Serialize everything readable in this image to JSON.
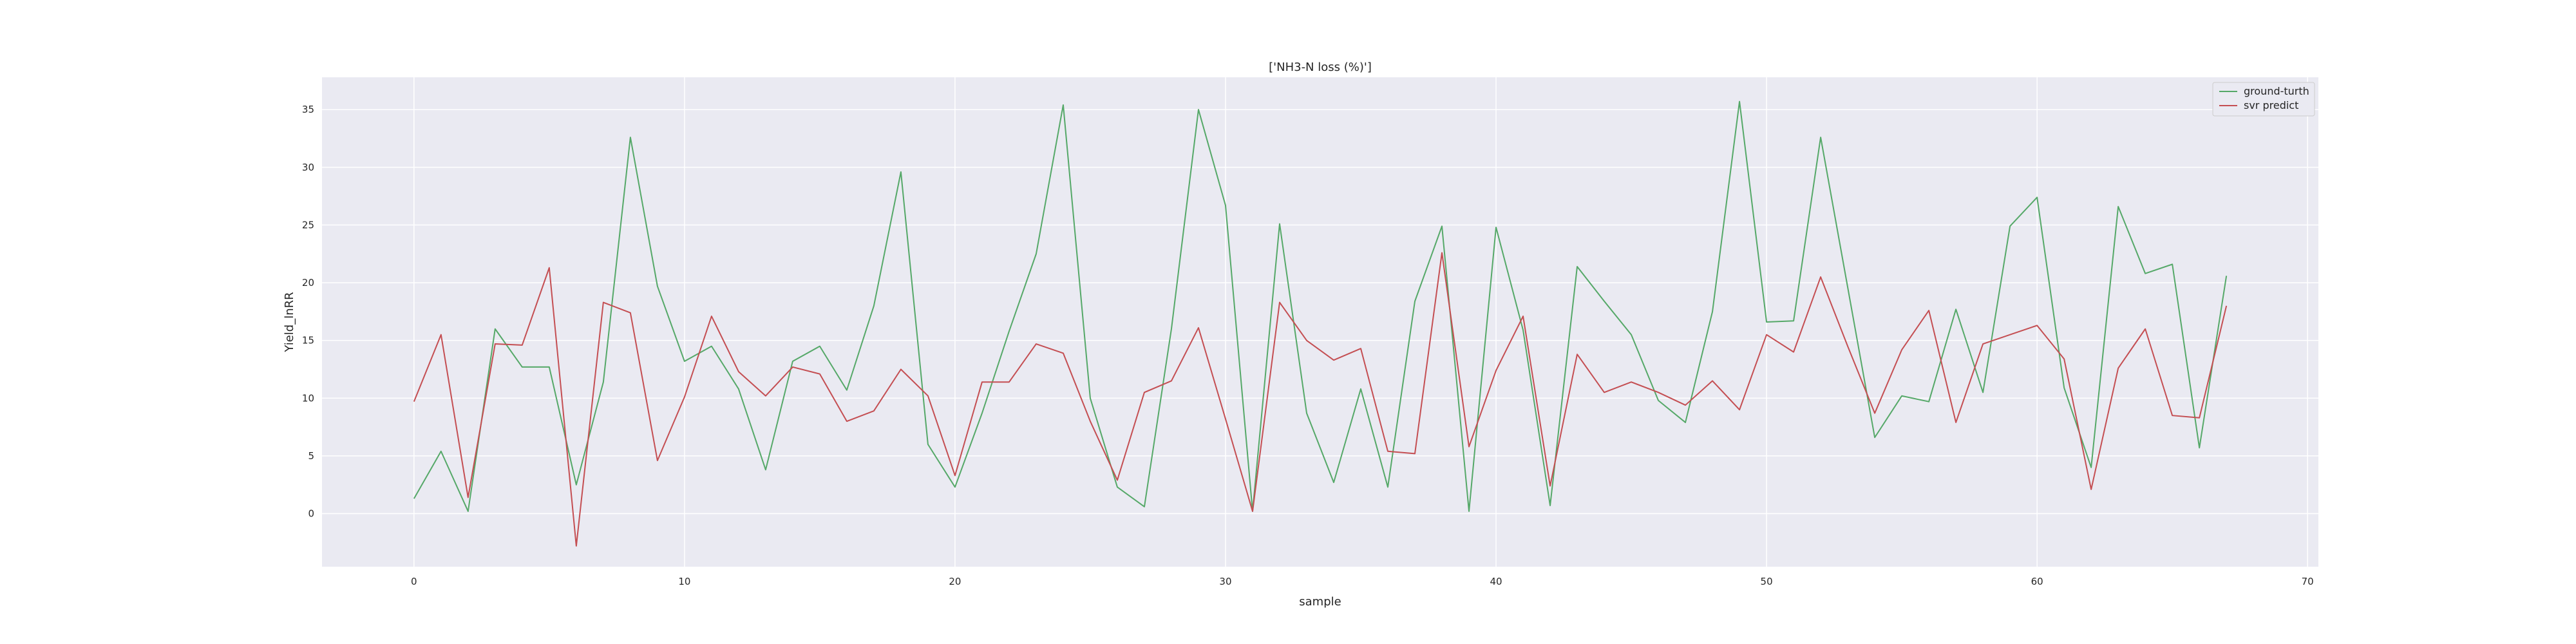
{
  "chart_data": {
    "type": "line",
    "title": "['NH3-N loss (%)']",
    "xlabel": "sample",
    "ylabel": "Yield_lnRR",
    "xlim": [
      -3.4,
      70.4
    ],
    "ylim": [
      -4.6,
      37.8
    ],
    "xticks": [
      0,
      10,
      20,
      30,
      40,
      50,
      60,
      70
    ],
    "yticks": [
      0,
      5,
      10,
      15,
      20,
      25,
      30,
      35
    ],
    "grid": true,
    "legend_position": "top-right",
    "x": [
      0,
      1,
      2,
      3,
      4,
      5,
      6,
      7,
      8,
      9,
      10,
      11,
      12,
      13,
      14,
      15,
      16,
      17,
      18,
      19,
      20,
      21,
      22,
      23,
      24,
      25,
      26,
      27,
      28,
      29,
      30,
      31,
      32,
      33,
      34,
      35,
      36,
      37,
      38,
      39,
      40,
      41,
      42,
      43,
      44,
      45,
      46,
      47,
      48,
      49,
      50,
      51,
      52,
      53,
      54,
      55,
      56,
      57,
      58,
      59,
      60,
      61,
      62,
      63,
      64,
      65,
      66,
      67
    ],
    "series": [
      {
        "name": "ground-turth",
        "color": "#55a868",
        "values": [
          1.3,
          5.4,
          0.2,
          16.0,
          12.7,
          12.7,
          2.5,
          11.4,
          32.6,
          19.7,
          13.2,
          14.5,
          10.8,
          3.8,
          13.2,
          14.5,
          10.7,
          18.0,
          29.6,
          6.0,
          2.3,
          8.7,
          15.8,
          22.5,
          35.4,
          10.0,
          2.3,
          0.6,
          16.0,
          35.0,
          26.7,
          0.2,
          25.1,
          8.7,
          2.7,
          10.8,
          2.3,
          18.4,
          24.9,
          0.2,
          24.8,
          15.9,
          0.7,
          21.4,
          18.4,
          15.5,
          9.8,
          7.9,
          17.5,
          35.7,
          16.6,
          16.7,
          32.6,
          19.6,
          6.6,
          10.2,
          9.7,
          17.7,
          10.5,
          24.9,
          27.4,
          10.9,
          4.0,
          26.6,
          20.8,
          21.6,
          5.7,
          20.6
        ]
      },
      {
        "name": "svr predict",
        "color": "#c44e52",
        "values": [
          9.7,
          15.5,
          1.4,
          14.7,
          14.6,
          21.3,
          -2.8,
          18.3,
          17.4,
          4.6,
          10.1,
          17.1,
          12.3,
          10.2,
          12.7,
          12.1,
          8.0,
          8.9,
          12.5,
          10.2,
          3.3,
          11.4,
          11.4,
          14.7,
          13.9,
          8.0,
          2.9,
          10.5,
          11.5,
          16.1,
          8.2,
          0.2,
          18.3,
          15.0,
          13.3,
          14.3,
          5.4,
          5.2,
          22.6,
          5.8,
          12.4,
          17.1,
          2.4,
          13.8,
          10.5,
          11.4,
          10.5,
          9.4,
          11.5,
          9.0,
          15.5,
          14.0,
          20.5,
          14.5,
          8.7,
          14.2,
          17.6,
          7.9,
          14.7,
          15.5,
          16.3,
          13.4,
          2.1,
          12.6,
          16.0,
          8.5,
          8.3,
          18.0
        ]
      }
    ]
  }
}
